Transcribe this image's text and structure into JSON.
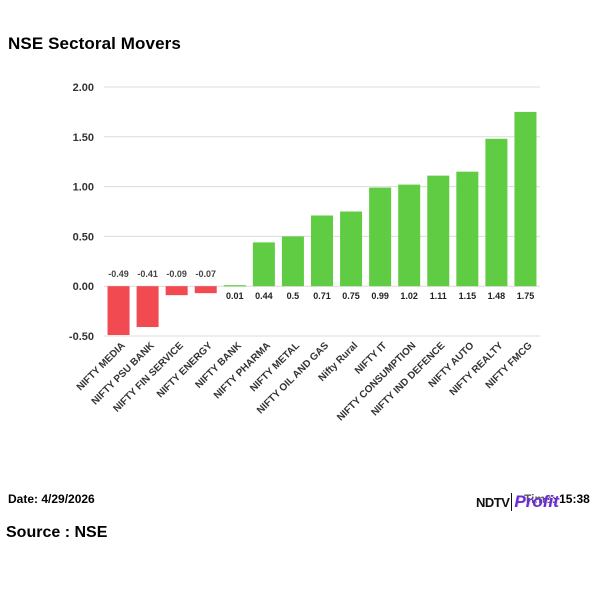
{
  "title": "NSE Sectoral Movers",
  "footer": {
    "date_label": "Date: 4/29/2026",
    "time_label": "Time: 15:38",
    "source_label": "Source : NSE"
  },
  "logo": {
    "part1": "NDTV",
    "part2": "Profit"
  },
  "colors": {
    "positive": "#5fcc44",
    "negative": "#f24a51",
    "grid": "#dcdcdc",
    "logo_accent": "#6a2bd0"
  },
  "chart_data": {
    "type": "bar",
    "categories": [
      "NIFTY MEDIA",
      "NIFTY PSU BANK",
      "NIFTY FIN SERVICE",
      "NIFTY ENERGY",
      "NIFTY BANK",
      "NIFTY PHARMA",
      "NIFTY METAL",
      "NIFTY OIL AND GAS",
      "Nifty Rural",
      "NIFTY IT",
      "NIFTY CONSUMPTION",
      "NIFTY IND DEFENCE",
      "NIFTY AUTO",
      "NIFTY REALTY",
      "NIFTY FMCG"
    ],
    "values": [
      -0.49,
      -0.41,
      -0.09,
      -0.07,
      0.01,
      0.44,
      0.5,
      0.71,
      0.75,
      0.99,
      1.02,
      1.11,
      1.15,
      1.48,
      1.75
    ],
    "value_labels": [
      "-0.49",
      "-0.41",
      "-0.09",
      "-0.07",
      "0.01",
      "0.44",
      "0.5",
      "0.71",
      "0.75",
      "0.99",
      "1.02",
      "1.11",
      "1.15",
      "1.48",
      "1.75"
    ],
    "yticks": [
      "2.00",
      "1.50",
      "1.00",
      "0.50",
      "0.00",
      "-0.50"
    ],
    "ylim": [
      -0.5,
      2.0
    ],
    "grid": true,
    "legend": "none",
    "xlabel": "",
    "ylabel": ""
  }
}
